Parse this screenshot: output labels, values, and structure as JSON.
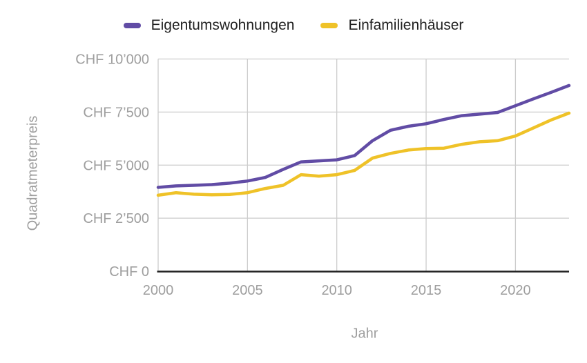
{
  "colors": {
    "background": "#ffffff",
    "grid": "#cccccc",
    "axis_line": "#212121",
    "tick_label": "#9e9e9e",
    "axis_title": "#9e9e9e",
    "legend_text": "#212121",
    "series_purple": "#614ca5",
    "series_yellow": "#efc228"
  },
  "axes": {
    "y_title": "Quadratmeterpreis",
    "x_title": "Jahr",
    "y_ticks": [
      {
        "label": "CHF 10’000",
        "value": 10000
      },
      {
        "label": "CHF 7’500",
        "value": 7500
      },
      {
        "label": "CHF 5’000",
        "value": 5000
      },
      {
        "label": "CHF 2’500",
        "value": 2500
      },
      {
        "label": "CHF 0",
        "value": 0
      }
    ],
    "x_ticks": [
      {
        "label": "2000",
        "value": 2000
      },
      {
        "label": "2005",
        "value": 2005
      },
      {
        "label": "2010",
        "value": 2010
      },
      {
        "label": "2015",
        "value": 2015
      },
      {
        "label": "2020",
        "value": 2020
      }
    ]
  },
  "chart_data": {
    "type": "line",
    "title": "",
    "xlabel": "Jahr",
    "ylabel": "Quadratmeterpreis",
    "xlim": [
      2000,
      2023
    ],
    "ylim": [
      0,
      10000
    ],
    "grid": true,
    "legend_position": "top",
    "x": [
      2000,
      2001,
      2002,
      2003,
      2004,
      2005,
      2006,
      2007,
      2008,
      2009,
      2010,
      2011,
      2012,
      2013,
      2014,
      2015,
      2016,
      2017,
      2018,
      2019,
      2020,
      2021,
      2022,
      2023
    ],
    "series": [
      {
        "name": "Eigentumswohnungen",
        "color": "#614ca5",
        "values": [
          3950,
          4020,
          4050,
          4080,
          4150,
          4250,
          4420,
          4800,
          5150,
          5200,
          5250,
          5450,
          6150,
          6640,
          6830,
          6950,
          7150,
          7330,
          7400,
          7480,
          7800,
          8120,
          8430,
          8750
        ]
      },
      {
        "name": "Einfamilienhäuser",
        "color": "#efc228",
        "values": [
          3580,
          3700,
          3630,
          3600,
          3620,
          3700,
          3900,
          4050,
          4550,
          4480,
          4550,
          4750,
          5330,
          5550,
          5710,
          5780,
          5800,
          5980,
          6100,
          6150,
          6370,
          6750,
          7130,
          7450
        ]
      }
    ]
  }
}
